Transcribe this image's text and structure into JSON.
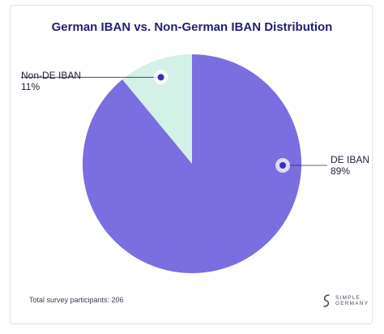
{
  "chart_data": {
    "type": "pie",
    "title": "German IBAN vs. Non-German IBAN Distribution",
    "slices": [
      {
        "label": "DE IBAN",
        "percent_text": "89%",
        "value": 89,
        "color": "#7b6ee0"
      },
      {
        "label": "Non-DE IBAN",
        "percent_text": "11%",
        "value": 11,
        "color": "#d4f1e8"
      }
    ],
    "start_angle_deg": 0,
    "direction": "counterclockwise",
    "legend": "none"
  },
  "footer": {
    "participants": "Total survey participants: 206"
  },
  "brand": {
    "line1": "SIMPLE",
    "line2": "GERMANY",
    "icon": "simple-germany-logo-icon"
  },
  "colors": {
    "title": "#241e73",
    "marker_dot": "#3b2fb5",
    "leader_line": "#2a2a60"
  }
}
